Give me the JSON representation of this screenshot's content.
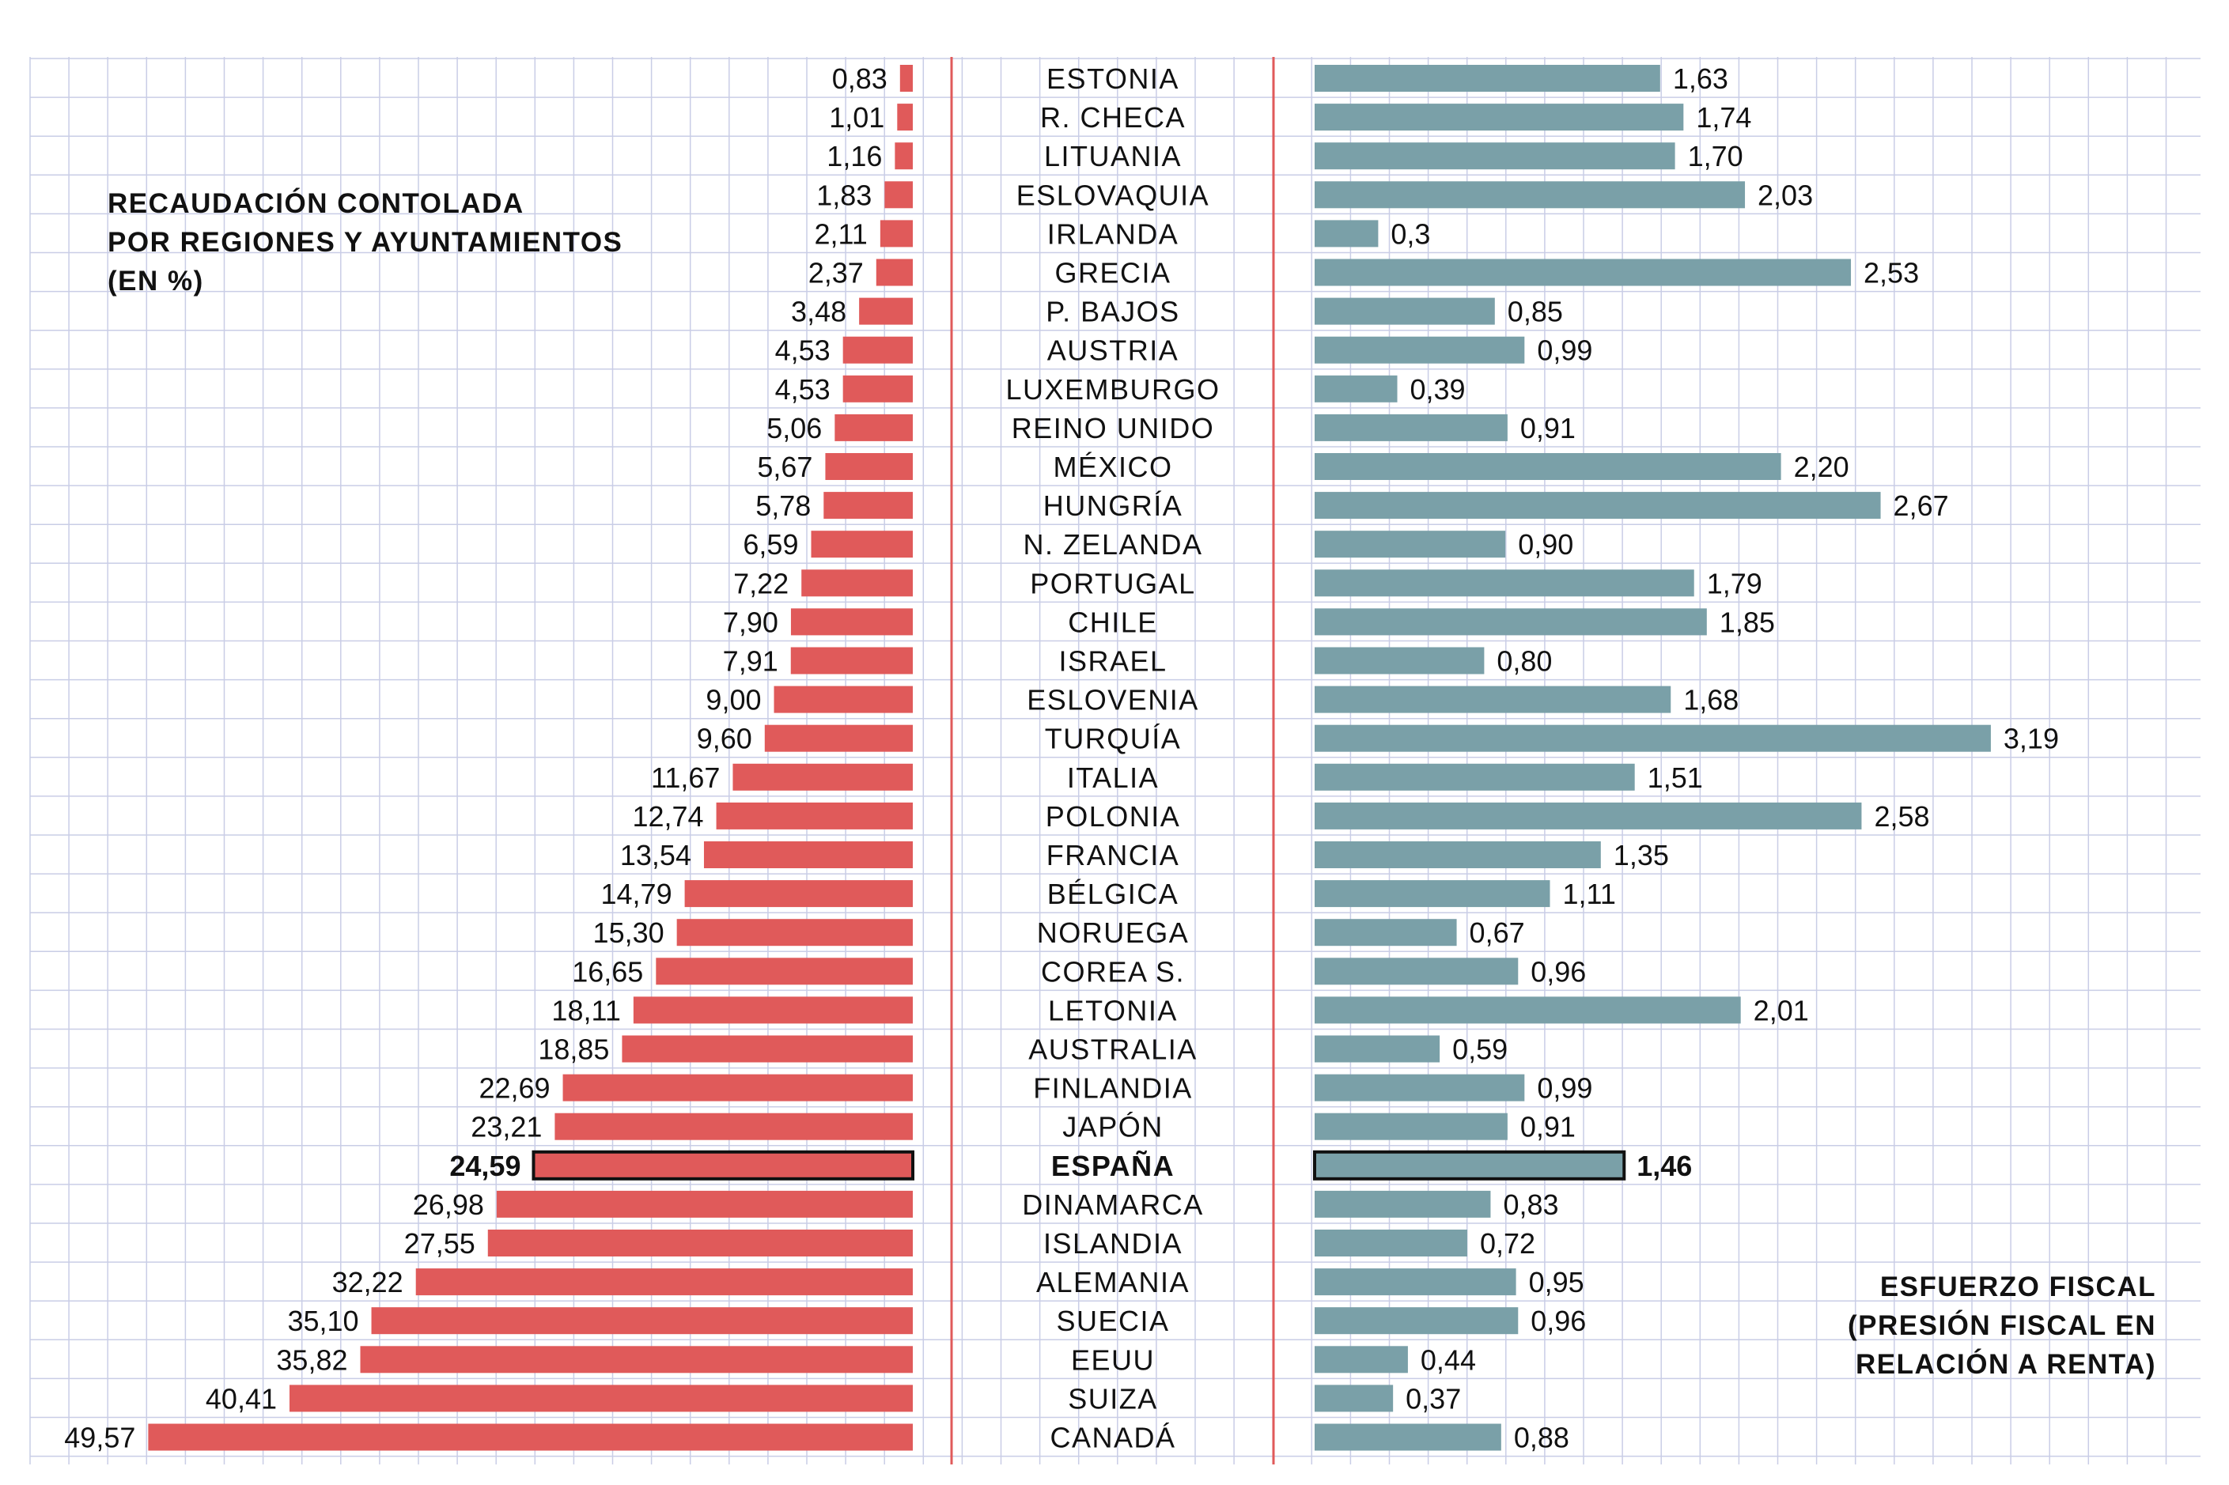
{
  "chart_data": [
    {
      "type": "bar",
      "title": "RECAUDACIÓN CONTOLADA POR REGIONES Y AYUNTAMIENTOS (EN %)",
      "title_lines": [
        "RECAUDACIÓN CONTOLADA",
        "POR REGIONES Y AYUNTAMIENTOS",
        "(EN %)"
      ],
      "orientation": "horizontal",
      "direction": "right-to-left",
      "color": "#e05a5a",
      "highlight": "ESPAÑA",
      "categories": [
        "ESTONIA",
        "R. CHECA",
        "LITUANIA",
        "ESLOVAQUIA",
        "IRLANDA",
        "GRECIA",
        "P. BAJOS",
        "AUSTRIA",
        "LUXEMBURGO",
        "REINO UNIDO",
        "MÉXICO",
        "HUNGRÍA",
        "N. ZELANDA",
        "PORTUGAL",
        "CHILE",
        "ISRAEL",
        "ESLOVENIA",
        "TURQUÍA",
        "ITALIA",
        "POLONIA",
        "FRANCIA",
        "BÉLGICA",
        "NORUEGA",
        "COREA S.",
        "LETONIA",
        "AUSTRALIA",
        "FINLANDIA",
        "JAPÓN",
        "ESPAÑA",
        "DINAMARCA",
        "ISLANDIA",
        "ALEMANIA",
        "SUECIA",
        "EEUU",
        "SUIZA",
        "CANADÁ"
      ],
      "values": [
        0.83,
        1.01,
        1.16,
        1.83,
        2.11,
        2.37,
        3.48,
        4.53,
        4.53,
        5.06,
        5.67,
        5.78,
        6.59,
        7.22,
        7.9,
        7.91,
        9.0,
        9.6,
        11.67,
        12.74,
        13.54,
        14.79,
        15.3,
        16.65,
        18.11,
        18.85,
        22.69,
        23.21,
        24.59,
        26.98,
        27.55,
        32.22,
        35.1,
        35.82,
        40.41,
        49.57
      ],
      "labels": [
        "0,83",
        "1,01",
        "1,16",
        "1,83",
        "2,11",
        "2,37",
        "3,48",
        "4,53",
        "4,53",
        "5,06",
        "5,67",
        "5,78",
        "6,59",
        "7,22",
        "7,90",
        "7,91",
        "9,00",
        "9,60",
        "11,67",
        "12,74",
        "13,54",
        "14,79",
        "15,30",
        "16,65",
        "18,11",
        "18,85",
        "22,69",
        "23,21",
        "24,59",
        "26,98",
        "27,55",
        "32,22",
        "35,10",
        "35,82",
        "40,41",
        "49,57"
      ]
    },
    {
      "type": "bar",
      "title": "ESFUERZO FISCAL (PRESIÓN FISCAL EN RELACIÓN A RENTA)",
      "title_lines": [
        "ESFUERZO FISCAL",
        "(PRESIÓN FISCAL EN",
        "RELACIÓN A RENTA)"
      ],
      "orientation": "horizontal",
      "direction": "left-to-right",
      "color": "#7aa0a8",
      "highlight": "ESPAÑA",
      "categories": [
        "ESTONIA",
        "R. CHECA",
        "LITUANIA",
        "ESLOVAQUIA",
        "IRLANDA",
        "GRECIA",
        "P. BAJOS",
        "AUSTRIA",
        "LUXEMBURGO",
        "REINO UNIDO",
        "MÉXICO",
        "HUNGRÍA",
        "N. ZELANDA",
        "PORTUGAL",
        "CHILE",
        "ISRAEL",
        "ESLOVENIA",
        "TURQUÍA",
        "ITALIA",
        "POLONIA",
        "FRANCIA",
        "BÉLGICA",
        "NORUEGA",
        "COREA S.",
        "LETONIA",
        "AUSTRALIA",
        "FINLANDIA",
        "JAPÓN",
        "ESPAÑA",
        "DINAMARCA",
        "ISLANDIA",
        "ALEMANIA",
        "SUECIA",
        "EEUU",
        "SUIZA",
        "CANADÁ"
      ],
      "values": [
        1.63,
        1.74,
        1.7,
        2.03,
        0.3,
        2.53,
        0.85,
        0.99,
        0.39,
        0.91,
        2.2,
        2.67,
        0.9,
        1.79,
        1.85,
        0.8,
        1.68,
        3.19,
        1.51,
        2.58,
        1.35,
        1.11,
        0.67,
        0.96,
        2.01,
        0.59,
        0.99,
        0.91,
        1.46,
        0.83,
        0.72,
        0.95,
        0.96,
        0.44,
        0.37,
        0.88
      ],
      "labels": [
        "1,63",
        "1,74",
        "1,70",
        "2,03",
        "0,3",
        "2,53",
        "0,85",
        "0,99",
        "0,39",
        "0,91",
        "2,20",
        "2,67",
        "0,90",
        "1,79",
        "1,85",
        "0,80",
        "1,68",
        "3,19",
        "1,51",
        "2,58",
        "1,35",
        "1,11",
        "0,67",
        "0,96",
        "2,01",
        "0,59",
        "0,99",
        "0,91",
        "1,46",
        "0,83",
        "0,72",
        "0,95",
        "0,96",
        "0,44",
        "0,37",
        "0,88"
      ]
    }
  ],
  "colors": {
    "grid": "#c9cde6",
    "divider": "#e05a5a",
    "text": "#111111",
    "left_bar": "#e05a5a",
    "right_bar": "#7aa0a8"
  }
}
